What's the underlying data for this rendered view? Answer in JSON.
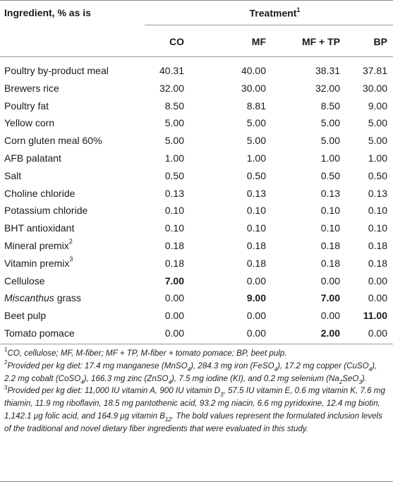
{
  "header": {
    "ingredient_label": "Ingredient, % as is",
    "treatment_label": "Treatment",
    "treatment_sup": "1",
    "columns": [
      "CO",
      "MF",
      "MF + TP",
      "BP"
    ]
  },
  "rows": [
    {
      "name": "Poultry by-product meal",
      "sup": "",
      "values": [
        "40.31",
        "40.00",
        "38.31",
        "37.81"
      ],
      "bold": [
        false,
        false,
        false,
        false
      ]
    },
    {
      "name": "Brewers rice",
      "sup": "",
      "values": [
        "32.00",
        "30.00",
        "32.00",
        "30.00"
      ],
      "bold": [
        false,
        false,
        false,
        false
      ]
    },
    {
      "name": "Poultry fat",
      "sup": "",
      "values": [
        "8.50",
        "8.81",
        "8.50",
        "9.00"
      ],
      "bold": [
        false,
        false,
        false,
        false
      ]
    },
    {
      "name": "Yellow corn",
      "sup": "",
      "values": [
        "5.00",
        "5.00",
        "5.00",
        "5.00"
      ],
      "bold": [
        false,
        false,
        false,
        false
      ]
    },
    {
      "name": "Corn gluten meal 60%",
      "sup": "",
      "values": [
        "5.00",
        "5.00",
        "5.00",
        "5.00"
      ],
      "bold": [
        false,
        false,
        false,
        false
      ]
    },
    {
      "name": "AFB palatant",
      "sup": "",
      "values": [
        "1.00",
        "1.00",
        "1.00",
        "1.00"
      ],
      "bold": [
        false,
        false,
        false,
        false
      ]
    },
    {
      "name": "Salt",
      "sup": "",
      "values": [
        "0.50",
        "0.50",
        "0.50",
        "0.50"
      ],
      "bold": [
        false,
        false,
        false,
        false
      ]
    },
    {
      "name": "Choline chloride",
      "sup": "",
      "values": [
        "0.13",
        "0.13",
        "0.13",
        "0.13"
      ],
      "bold": [
        false,
        false,
        false,
        false
      ]
    },
    {
      "name": "Potassium chloride",
      "sup": "",
      "values": [
        "0.10",
        "0.10",
        "0.10",
        "0.10"
      ],
      "bold": [
        false,
        false,
        false,
        false
      ]
    },
    {
      "name": "BHT antioxidant",
      "sup": "",
      "values": [
        "0.10",
        "0.10",
        "0.10",
        "0.10"
      ],
      "bold": [
        false,
        false,
        false,
        false
      ]
    },
    {
      "name": "Mineral premix",
      "sup": "2",
      "values": [
        "0.18",
        "0.18",
        "0.18",
        "0.18"
      ],
      "bold": [
        false,
        false,
        false,
        false
      ]
    },
    {
      "name": "Vitamin premix",
      "sup": "3",
      "values": [
        "0.18",
        "0.18",
        "0.18",
        "0.18"
      ],
      "bold": [
        false,
        false,
        false,
        false
      ]
    },
    {
      "name": "Cellulose",
      "sup": "",
      "values": [
        "7.00",
        "0.00",
        "0.00",
        "0.00"
      ],
      "bold": [
        true,
        false,
        false,
        false
      ]
    },
    {
      "name": "Miscanthus grass",
      "sup": "",
      "italic_part": "Miscanthus",
      "rest": " grass",
      "values": [
        "0.00",
        "9.00",
        "7.00",
        "0.00"
      ],
      "bold": [
        false,
        true,
        true,
        false
      ]
    },
    {
      "name": "Beet pulp",
      "sup": "",
      "values": [
        "0.00",
        "0.00",
        "0.00",
        "11.00"
      ],
      "bold": [
        false,
        false,
        false,
        true
      ]
    },
    {
      "name": "Tomato pomace",
      "sup": "",
      "values": [
        "0.00",
        "0.00",
        "2.00",
        "0.00"
      ],
      "bold": [
        false,
        false,
        true,
        false
      ]
    }
  ],
  "footnotes": {
    "n1_sup": "1",
    "n1": "CO, cellulose; MF, M-fiber; MF + TP, M-fiber + tomato pomace; BP, beet pulp.",
    "n2_sup": "2",
    "n2_a": "Provided per kg diet: 17.4 mg manganese (MnSO",
    "n2_b": "), 284.3 mg iron (FeSO",
    "n2_c": "), 17.2 mg copper (CuSO",
    "n2_d": "), 2.2 mg cobalt (CoSO",
    "n2_e": "), 166.3 mg zinc (ZnSO",
    "n2_f": "), 7.5 mg iodine (KI), and 0.2 mg selenium (Na",
    "n2_g": "SeO",
    "n2_h": ").",
    "n3_sup": "3",
    "n3_a": "Provided per kg diet: 11,000 IU vitamin A, 900 IU vitamin D",
    "n3_b": ", 57.5 IU vitamin E, 0.6 mg vitamin K, 7.6 mg thiamin, 11.9 mg riboflavin, 18.5 mg pantothenic acid, 93.2 mg niacin, 6.6 mg pyridoxine, 12.4 mg biotin, 1,142.1 μg folic acid, and 164.9 μg vitamin B",
    "n3_c": ". The bold values represent the formulated inclusion levels of the traditional and novel dietary fiber ingredients that were evaluated in this study.",
    "sub4": "4",
    "sub2": "2",
    "sub3": "3",
    "sub12": "12"
  }
}
